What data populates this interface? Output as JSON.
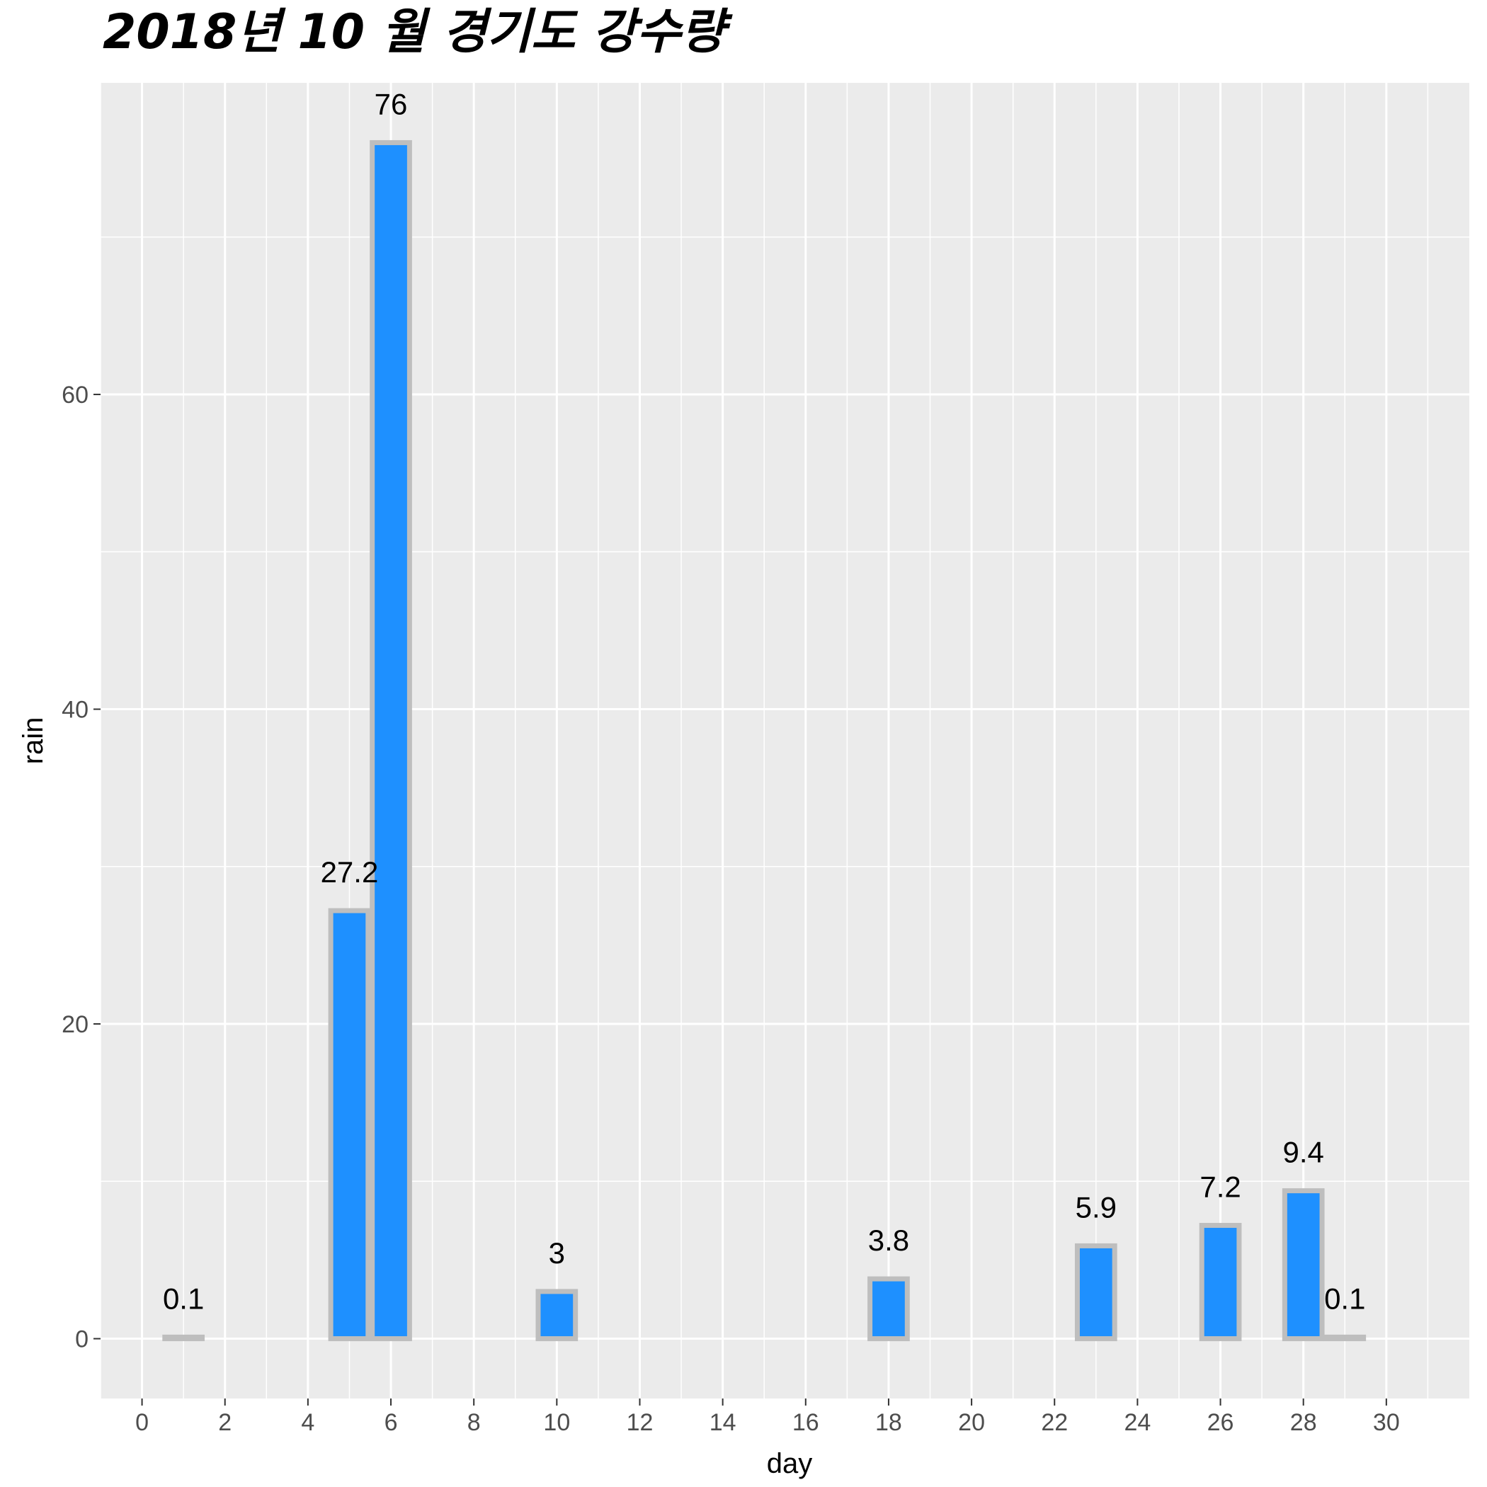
{
  "chart_data": {
    "type": "bar",
    "title": "2018년 10 월 경기도 강수량",
    "xlabel": "day",
    "ylabel": "rain",
    "x": [
      1,
      5,
      6,
      10,
      18,
      23,
      26,
      28,
      29
    ],
    "values": [
      0.1,
      27.2,
      76,
      3,
      3.8,
      5.9,
      7.2,
      9.4,
      0.1
    ],
    "data_labels": [
      "0.1",
      "27.2",
      "76",
      "3",
      "3.8",
      "5.9",
      "7.2",
      "9.4",
      "0.1"
    ],
    "x_ticks": [
      0,
      2,
      4,
      6,
      8,
      10,
      12,
      14,
      16,
      18,
      20,
      22,
      24,
      26,
      28,
      30
    ],
    "y_ticks": [
      0,
      20,
      40,
      60
    ],
    "xlim": [
      -1,
      32
    ],
    "ylim": [
      -3.8,
      79.8
    ],
    "grid": true,
    "colors": {
      "bar_fill": "#1E90FF",
      "bar_outline": "#BEBEBE",
      "panel": "#EBEBEB",
      "grid": "#FFFFFF"
    }
  }
}
